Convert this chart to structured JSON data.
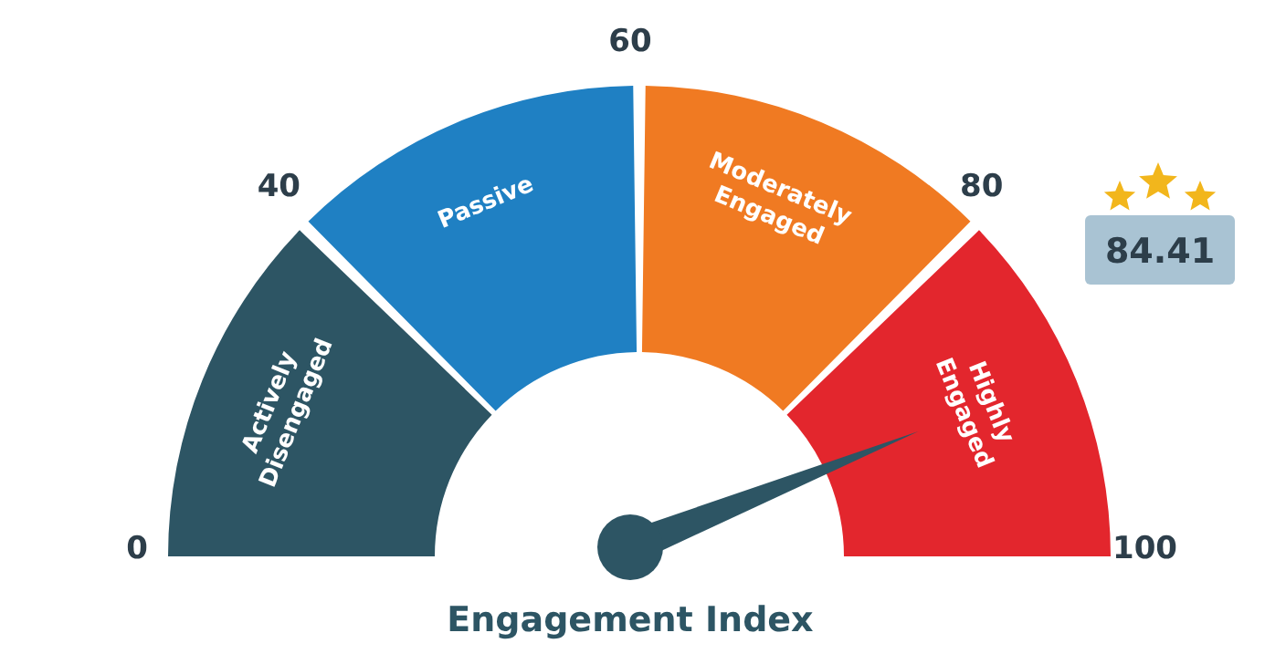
{
  "chart_data": {
    "type": "donut",
    "title": "Engagement Index",
    "categories": [
      "Actively Disengaged",
      "Passive",
      "Moderately Engaged",
      "Highly Engaged"
    ],
    "values": [
      25,
      25,
      25,
      25
    ],
    "colors": [
      "#2d5564",
      "#1f80c3",
      "#f07a22",
      "#e3262d"
    ],
    "needle": "Highly Engaged",
    "annotations": [
      "0",
      "40",
      "60",
      "80",
      "100",
      "84.41"
    ]
  }
}
